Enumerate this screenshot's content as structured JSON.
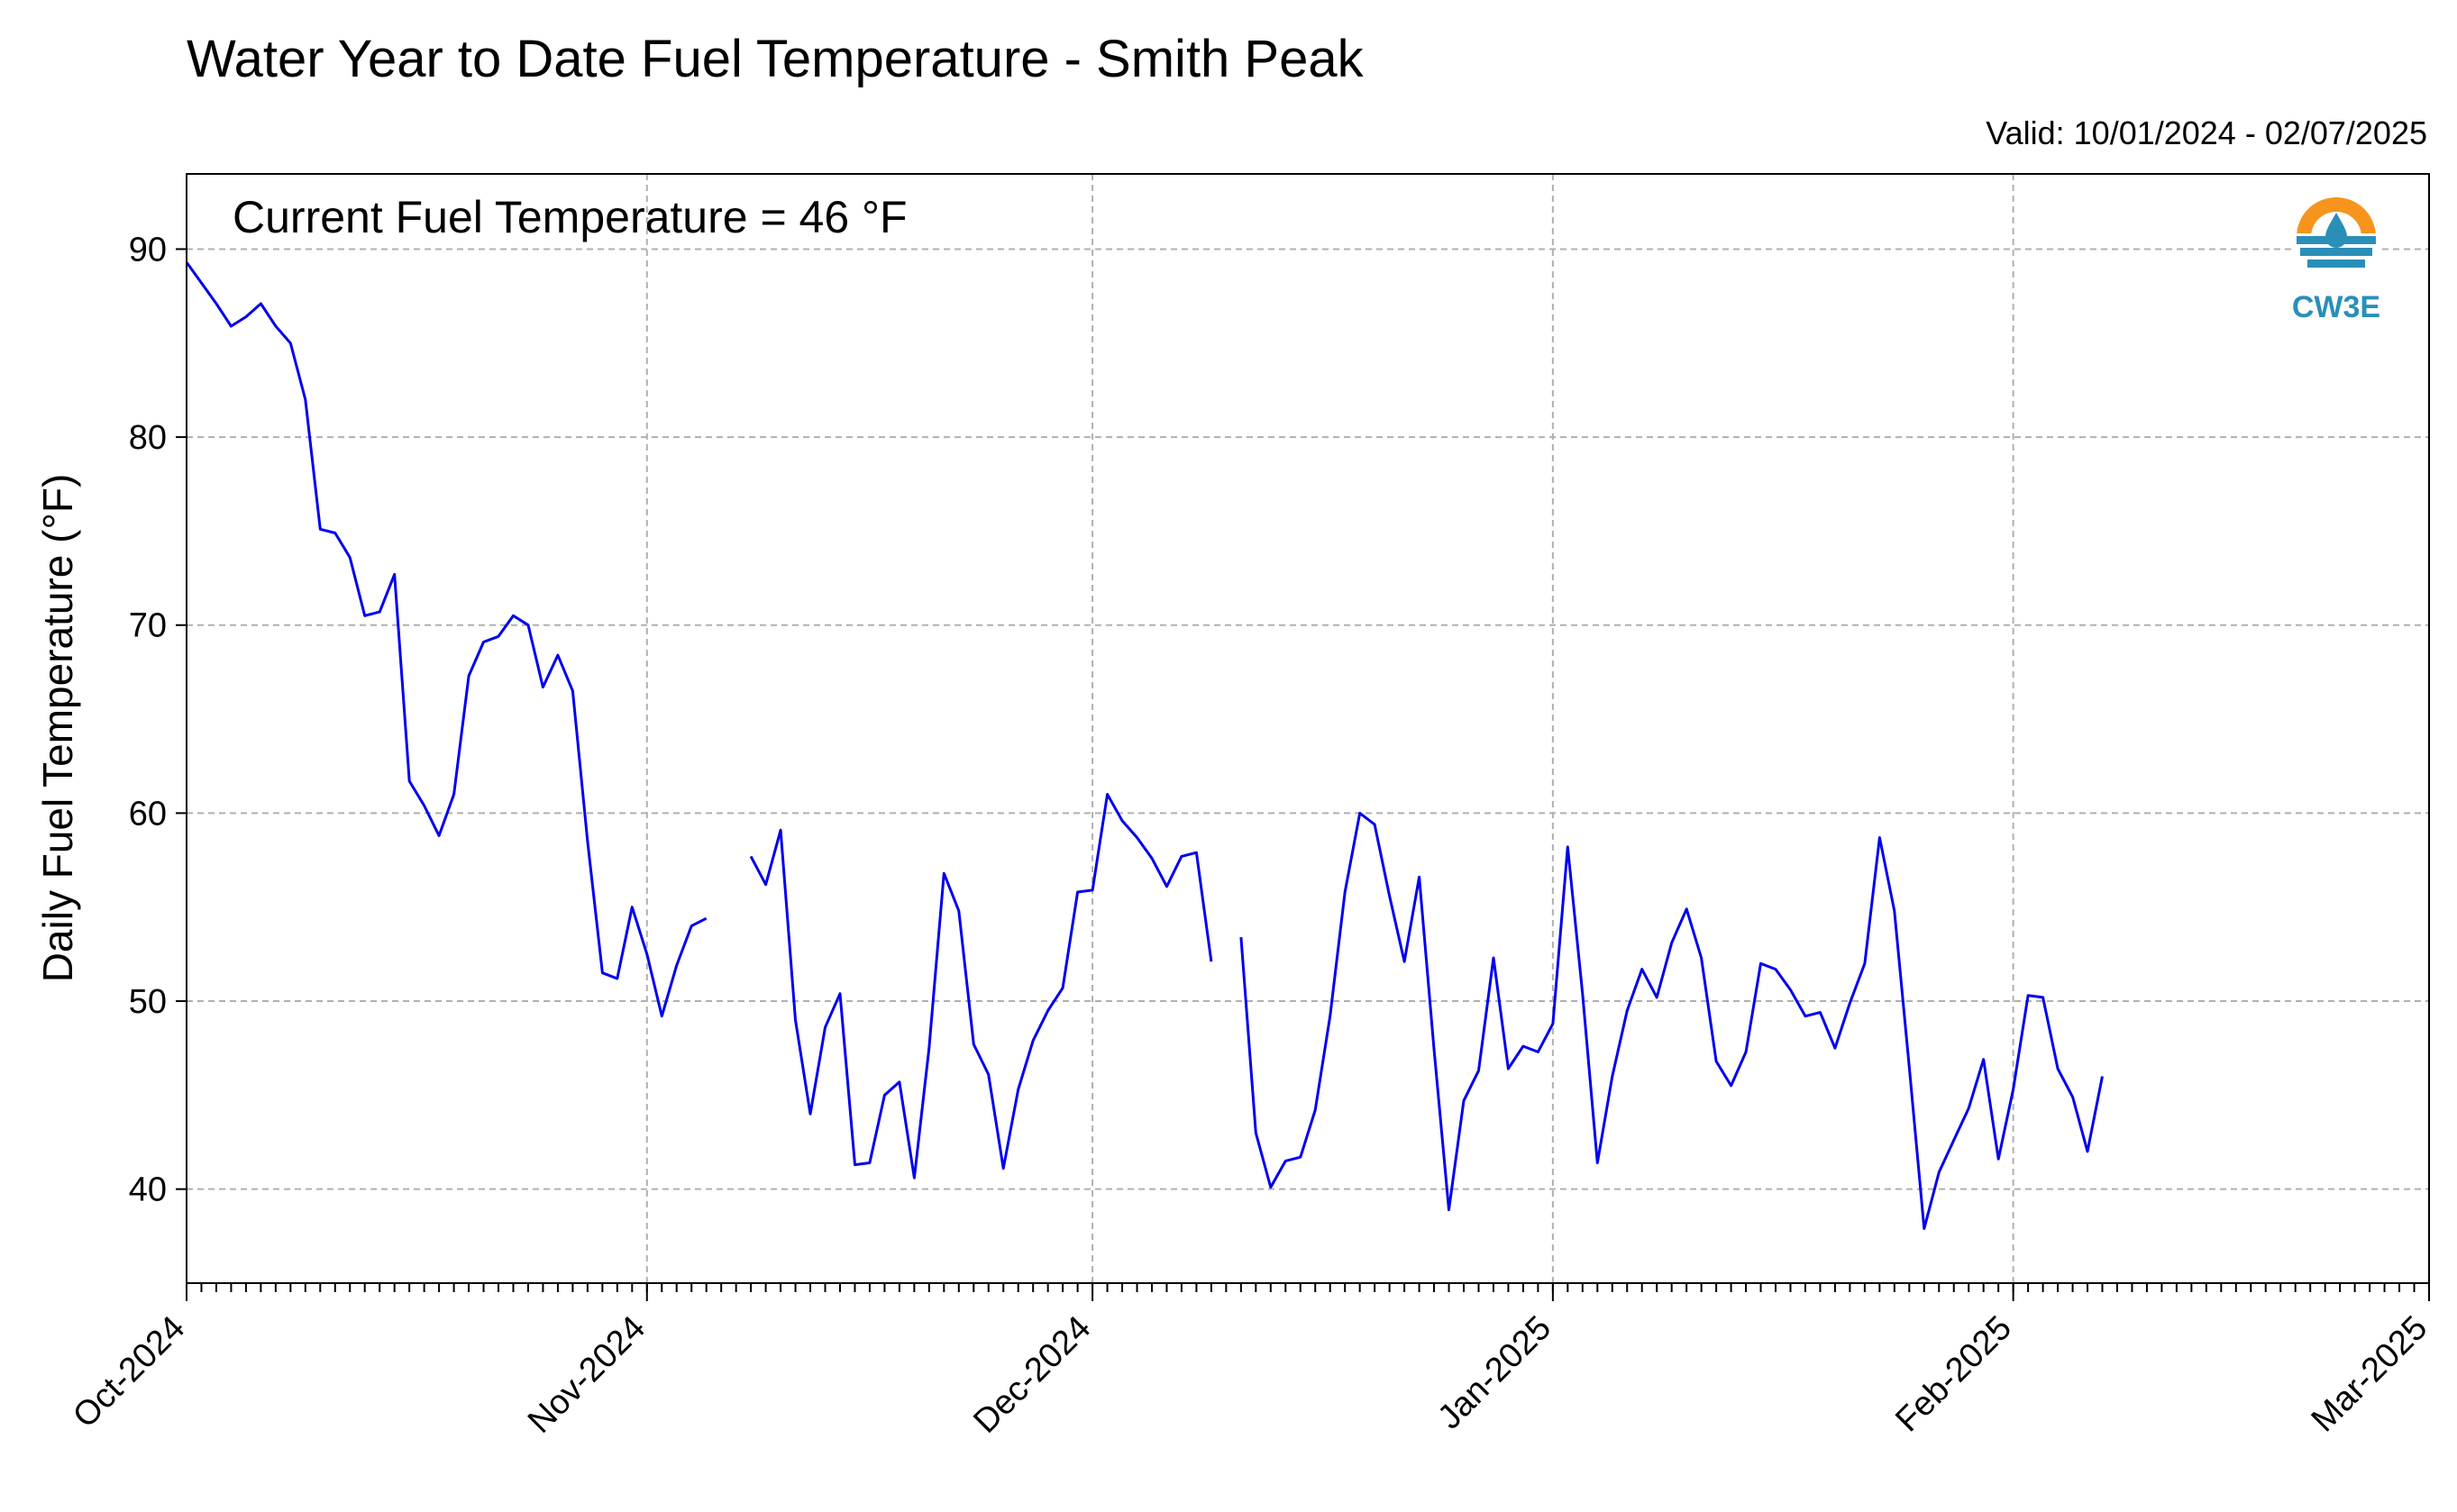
{
  "chart_data": {
    "type": "line",
    "title": "Water Year to Date Fuel Temperature - Smith Peak",
    "subtitle": "Valid: 10/01/2024 - 02/07/2025",
    "annotation": "Current Fuel Temperature = 46 °F",
    "xlabel": "",
    "ylabel": "Daily Fuel Temperature (°F)",
    "xlim": [
      "2024-10-01",
      "2025-03-01"
    ],
    "ylim": [
      35,
      94
    ],
    "yticks": [
      40,
      50,
      60,
      70,
      80,
      90
    ],
    "xtick_labels": [
      {
        "date": "2024-10-01",
        "label": "Oct-2024"
      },
      {
        "date": "2024-11-01",
        "label": "Nov-2024"
      },
      {
        "date": "2024-12-01",
        "label": "Dec-2024"
      },
      {
        "date": "2025-01-01",
        "label": "Jan-2025"
      },
      {
        "date": "2025-02-01",
        "label": "Feb-2025"
      },
      {
        "date": "2025-03-01",
        "label": "Mar-2025"
      }
    ],
    "grid": true,
    "line_color": "#0000ee",
    "series": [
      {
        "points": [
          [
            "2024-10-01",
            89.3
          ],
          [
            "2024-10-02",
            88.2
          ],
          [
            "2024-10-03",
            87.1
          ],
          [
            "2024-10-04",
            85.9
          ],
          [
            "2024-10-05",
            86.4
          ],
          [
            "2024-10-06",
            87.1
          ],
          [
            "2024-10-07",
            85.9
          ],
          [
            "2024-10-08",
            85.0
          ],
          [
            "2024-10-09",
            82.0
          ],
          [
            "2024-10-10",
            75.1
          ],
          [
            "2024-10-11",
            74.9
          ],
          [
            "2024-10-12",
            73.6
          ],
          [
            "2024-10-13",
            70.5
          ],
          [
            "2024-10-14",
            70.7
          ],
          [
            "2024-10-15",
            72.7
          ],
          [
            "2024-10-16",
            61.7
          ],
          [
            "2024-10-17",
            60.4
          ],
          [
            "2024-10-18",
            58.8
          ],
          [
            "2024-10-19",
            61.0
          ],
          [
            "2024-10-20",
            67.3
          ],
          [
            "2024-10-21",
            69.1
          ],
          [
            "2024-10-22",
            69.4
          ],
          [
            "2024-10-23",
            70.5
          ],
          [
            "2024-10-24",
            70.0
          ],
          [
            "2024-10-25",
            66.7
          ],
          [
            "2024-10-26",
            68.4
          ],
          [
            "2024-10-27",
            66.5
          ],
          [
            "2024-10-28",
            58.5
          ],
          [
            "2024-10-29",
            51.5
          ],
          [
            "2024-10-30",
            51.2
          ],
          [
            "2024-10-31",
            55.0
          ],
          [
            "2024-11-01",
            52.5
          ],
          [
            "2024-11-02",
            49.2
          ],
          [
            "2024-11-03",
            51.9
          ],
          [
            "2024-11-04",
            54.0
          ],
          [
            "2024-11-05",
            54.4
          ]
        ]
      },
      {
        "points": [
          [
            "2024-11-08",
            57.7
          ],
          [
            "2024-11-09",
            56.2
          ],
          [
            "2024-11-10",
            59.1
          ],
          [
            "2024-11-11",
            49.0
          ],
          [
            "2024-11-12",
            44.0
          ],
          [
            "2024-11-13",
            48.6
          ],
          [
            "2024-11-14",
            50.4
          ],
          [
            "2024-11-15",
            41.3
          ],
          [
            "2024-11-16",
            41.4
          ],
          [
            "2024-11-17",
            45.0
          ],
          [
            "2024-11-18",
            45.7
          ],
          [
            "2024-11-19",
            40.6
          ],
          [
            "2024-11-20",
            47.5
          ],
          [
            "2024-11-21",
            56.8
          ],
          [
            "2024-11-22",
            54.8
          ],
          [
            "2024-11-23",
            47.7
          ],
          [
            "2024-11-24",
            46.1
          ],
          [
            "2024-11-25",
            41.1
          ],
          [
            "2024-11-26",
            45.3
          ],
          [
            "2024-11-27",
            47.9
          ],
          [
            "2024-11-28",
            49.5
          ],
          [
            "2024-11-29",
            50.7
          ],
          [
            "2024-11-30",
            55.8
          ],
          [
            "2024-12-01",
            55.9
          ],
          [
            "2024-12-02",
            61.0
          ],
          [
            "2024-12-03",
            59.6
          ],
          [
            "2024-12-04",
            58.7
          ],
          [
            "2024-12-05",
            57.6
          ],
          [
            "2024-12-06",
            56.1
          ],
          [
            "2024-12-07",
            57.7
          ],
          [
            "2024-12-08",
            57.9
          ],
          [
            "2024-12-09",
            52.1
          ]
        ]
      },
      {
        "points": [
          [
            "2024-12-11",
            53.4
          ],
          [
            "2024-12-12",
            43.0
          ],
          [
            "2024-12-13",
            40.1
          ],
          [
            "2024-12-14",
            41.5
          ],
          [
            "2024-12-15",
            41.7
          ],
          [
            "2024-12-16",
            44.2
          ],
          [
            "2024-12-17",
            49.2
          ],
          [
            "2024-12-18",
            55.8
          ],
          [
            "2024-12-19",
            60.0
          ],
          [
            "2024-12-20",
            59.4
          ],
          [
            "2024-12-21",
            55.6
          ],
          [
            "2024-12-22",
            52.1
          ],
          [
            "2024-12-23",
            56.6
          ],
          [
            "2024-12-24",
            47.4
          ],
          [
            "2024-12-25",
            38.9
          ],
          [
            "2024-12-26",
            44.7
          ],
          [
            "2024-12-27",
            46.3
          ],
          [
            "2024-12-28",
            52.3
          ],
          [
            "2024-12-29",
            46.4
          ],
          [
            "2024-12-30",
            47.6
          ],
          [
            "2024-12-31",
            47.3
          ],
          [
            "2025-01-01",
            48.8
          ],
          [
            "2025-01-02",
            58.2
          ],
          [
            "2025-01-03",
            50.4
          ],
          [
            "2025-01-04",
            41.4
          ],
          [
            "2025-01-05",
            46.0
          ],
          [
            "2025-01-06",
            49.5
          ],
          [
            "2025-01-07",
            51.7
          ],
          [
            "2025-01-08",
            50.2
          ],
          [
            "2025-01-09",
            53.1
          ],
          [
            "2025-01-10",
            54.9
          ],
          [
            "2025-01-11",
            52.3
          ],
          [
            "2025-01-12",
            46.8
          ],
          [
            "2025-01-13",
            45.5
          ],
          [
            "2025-01-14",
            47.3
          ],
          [
            "2025-01-15",
            52.0
          ],
          [
            "2025-01-16",
            51.7
          ],
          [
            "2025-01-17",
            50.6
          ],
          [
            "2025-01-18",
            49.2
          ],
          [
            "2025-01-19",
            49.4
          ],
          [
            "2025-01-20",
            47.5
          ],
          [
            "2025-01-21",
            49.9
          ],
          [
            "2025-01-22",
            52.0
          ],
          [
            "2025-01-23",
            58.7
          ],
          [
            "2025-01-24",
            54.8
          ],
          [
            "2025-01-25",
            46.5
          ],
          [
            "2025-01-26",
            37.9
          ],
          [
            "2025-01-27",
            40.9
          ],
          [
            "2025-01-28",
            42.6
          ],
          [
            "2025-01-29",
            44.3
          ],
          [
            "2025-01-30",
            46.9
          ],
          [
            "2025-01-31",
            41.6
          ],
          [
            "2025-02-01",
            45.3
          ],
          [
            "2025-02-02",
            50.3
          ],
          [
            "2025-02-03",
            50.2
          ],
          [
            "2025-02-04",
            46.4
          ],
          [
            "2025-02-05",
            44.9
          ],
          [
            "2025-02-06",
            42.0
          ],
          [
            "2025-02-07",
            46.0
          ]
        ]
      }
    ]
  },
  "logo": {
    "text": "CW3E",
    "icon": "droplet-sun-icon",
    "colors": {
      "sun": "#f7941d",
      "water": "#2a8fb8",
      "text": "#2a8fb8"
    }
  }
}
